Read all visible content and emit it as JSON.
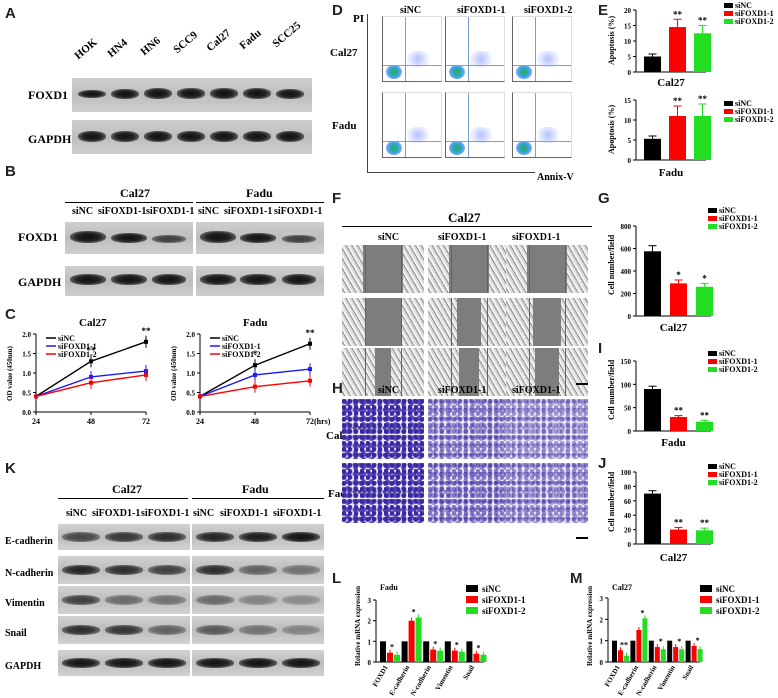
{
  "panels": {
    "A": "A",
    "B": "B",
    "C": "C",
    "D": "D",
    "E": "E",
    "F": "F",
    "G": "G",
    "H": "H",
    "I": "I",
    "J": "J",
    "K": "K",
    "L": "L",
    "M": "M"
  },
  "panelA": {
    "cell_lines": [
      "HOK",
      "HN4",
      "HN6",
      "SCC9",
      "Cal27",
      "Fadu",
      "SCC25"
    ],
    "rows": [
      "FOXD1",
      "GAPDH"
    ]
  },
  "panelB": {
    "groups": [
      "Cal27",
      "Fadu"
    ],
    "lanes": [
      "siNC",
      "siFOXD1-1",
      "siFOXD1-1"
    ],
    "rows": [
      "FOXD1",
      "GAPDH"
    ]
  },
  "panelD": {
    "columns": [
      "siNC",
      "siFOXD1-1",
      "siFOXD1-2"
    ],
    "rows": [
      "Cal27",
      "Fadu"
    ],
    "yaxis": "PI",
    "xaxis": "Annix-V"
  },
  "panelF": {
    "title": "Cal27",
    "columns": [
      "siNC",
      "siFOXD1-1",
      "siFOXD1-1"
    ]
  },
  "panelH": {
    "columns": [
      "siNC",
      "siFOXD1-1",
      "siFOXD1-1"
    ],
    "rows": [
      "Cal27",
      "Fadu"
    ]
  },
  "panelK": {
    "groups": [
      "Cal27",
      "Fadu"
    ],
    "lanes": [
      "siNC",
      "siFOXD1-1",
      "siFOXD1-1"
    ],
    "rows": [
      "E-cadherin",
      "N-cadherin",
      "Vimentin",
      "Snail",
      "GAPDH"
    ]
  },
  "colors": {
    "siNC": "#000000",
    "si1": "#ff0000",
    "si2": "#22dd22",
    "blue": "#1a1aff"
  },
  "chart_data": [
    {
      "id": "C1",
      "type": "line",
      "title": "Cal27",
      "xlabel": "",
      "ylabel": "OD value (450nm)",
      "x": [
        24,
        48,
        72
      ],
      "ylim": [
        0,
        2.0
      ],
      "yticks": [
        0,
        0.5,
        1.0,
        1.5,
        2.0
      ],
      "ytick_labels": [
        "0.0",
        "0.5",
        "1.0",
        "1.5",
        "2.0"
      ],
      "series": [
        {
          "name": "siNC",
          "color": "#000000",
          "values": [
            0.4,
            1.3,
            1.8
          ]
        },
        {
          "name": "siFOXD1-1",
          "color": "#1a1aff",
          "values": [
            0.4,
            0.9,
            1.05
          ]
        },
        {
          "name": "siFOXD1-2",
          "color": "#ff0000",
          "values": [
            0.4,
            0.75,
            0.95
          ]
        }
      ],
      "annotations": [
        "**",
        "**"
      ]
    },
    {
      "id": "C2",
      "type": "line",
      "title": "Fadu",
      "xlabel": "(hrs)",
      "ylabel": "OD value (450nm)",
      "x": [
        24,
        48,
        72
      ],
      "ylim": [
        0,
        2.0
      ],
      "yticks": [
        0,
        0.5,
        1.0,
        1.5,
        2.0
      ],
      "ytick_labels": [
        "0.0",
        "0.5",
        "1.0",
        "1.5",
        "2.0"
      ],
      "series": [
        {
          "name": "siNC",
          "color": "#000000",
          "values": [
            0.4,
            1.2,
            1.75
          ]
        },
        {
          "name": "siFOXD1-1",
          "color": "#1a1aff",
          "values": [
            0.4,
            0.95,
            1.1
          ]
        },
        {
          "name": "siFOXD1-2",
          "color": "#ff0000",
          "values": [
            0.4,
            0.65,
            0.8
          ]
        }
      ],
      "annotations": [
        "*",
        "**"
      ]
    },
    {
      "id": "E1",
      "type": "bar",
      "title": "Cal27",
      "ylabel": "Apoptosis (%)",
      "ylim": [
        0,
        20
      ],
      "yticks": [
        0,
        5,
        10,
        15,
        20
      ],
      "categories": [
        "siNC",
        "siFOXD1-1",
        "siFOXD1-2"
      ],
      "values": [
        5,
        14.5,
        12.5
      ],
      "errors": [
        0.8,
        2.5,
        2.5
      ],
      "colors": [
        "#000000",
        "#ff0000",
        "#22dd22"
      ],
      "annotations": [
        "",
        "**",
        "**"
      ]
    },
    {
      "id": "E2",
      "type": "bar",
      "title": "Fadu",
      "ylabel": "Apoptosis (%)",
      "ylim": [
        0,
        15
      ],
      "yticks": [
        0,
        5,
        10,
        15
      ],
      "categories": [
        "siNC",
        "siFOXD1-1",
        "siFOXD1-2"
      ],
      "values": [
        5.3,
        11,
        11
      ],
      "errors": [
        0.7,
        2.5,
        3.0
      ],
      "colors": [
        "#000000",
        "#ff0000",
        "#22dd22"
      ],
      "annotations": [
        "",
        "**",
        "**"
      ]
    },
    {
      "id": "G",
      "type": "bar",
      "title": "Cal27",
      "ylabel": "Cell number/field",
      "ylim": [
        0,
        800
      ],
      "yticks": [
        0,
        200,
        400,
        600,
        800
      ],
      "categories": [
        "siNC",
        "siFOXD1-1",
        "siFOXD1-2"
      ],
      "values": [
        575,
        290,
        260
      ],
      "errors": [
        50,
        30,
        30
      ],
      "colors": [
        "#000000",
        "#ff0000",
        "#22dd22"
      ],
      "annotations": [
        "",
        "*",
        "*"
      ]
    },
    {
      "id": "I",
      "type": "bar",
      "title": "Fadu",
      "ylabel": "Cell number/field",
      "ylim": [
        0,
        150
      ],
      "yticks": [
        0,
        50,
        100,
        150
      ],
      "categories": [
        "siNC",
        "siFOXD1-1",
        "siFOXD1-2"
      ],
      "values": [
        90,
        30,
        20
      ],
      "errors": [
        6,
        3,
        3
      ],
      "colors": [
        "#000000",
        "#ff0000",
        "#22dd22"
      ],
      "annotations": [
        "",
        "**",
        "**"
      ]
    },
    {
      "id": "J",
      "type": "bar",
      "title": "Cal27",
      "ylabel": "Cell number/field",
      "ylim": [
        0,
        100
      ],
      "yticks": [
        0,
        20,
        40,
        60,
        80,
        100
      ],
      "categories": [
        "siNC",
        "siFOXD1-1",
        "siFOXD1-2"
      ],
      "values": [
        70,
        20,
        19
      ],
      "errors": [
        4,
        3,
        3
      ],
      "colors": [
        "#000000",
        "#ff0000",
        "#22dd22"
      ],
      "annotations": [
        "",
        "**",
        "**"
      ]
    },
    {
      "id": "L",
      "type": "bar",
      "title": "Fadu",
      "ylabel": "Relative  mRNA expression",
      "ylim": [
        0,
        3
      ],
      "yticks": [
        0,
        1,
        2,
        3
      ],
      "categories": [
        "FOXD1",
        "E-cadherin",
        "N-cadherin",
        "Vimentin",
        "Snail"
      ],
      "series": [
        {
          "name": "siNC",
          "color": "#000000",
          "values": [
            1,
            1,
            1,
            1,
            1
          ]
        },
        {
          "name": "siFOXD1-1",
          "color": "#ff0000",
          "values": [
            0.45,
            2.0,
            0.6,
            0.55,
            0.4
          ]
        },
        {
          "name": "siFOXD1-2",
          "color": "#22dd22",
          "values": [
            0.35,
            2.15,
            0.55,
            0.5,
            0.35
          ]
        }
      ],
      "annotations": [
        "*",
        "*",
        "*",
        "*",
        "*"
      ]
    },
    {
      "id": "M",
      "type": "bar",
      "title": "Cal27",
      "ylabel": "Relative  mRNA expression",
      "ylim": [
        0,
        3
      ],
      "yticks": [
        0,
        1,
        2,
        3
      ],
      "categories": [
        "FOXD1",
        "E-cadherin",
        "N-cadherin",
        "Vimentin",
        "Snail"
      ],
      "series": [
        {
          "name": "siNC",
          "color": "#000000",
          "values": [
            1,
            1,
            1,
            1,
            1
          ]
        },
        {
          "name": "siFOXD1-1",
          "color": "#ff0000",
          "values": [
            0.55,
            1.5,
            0.7,
            0.7,
            0.75
          ]
        },
        {
          "name": "siFOXD1-2",
          "color": "#22dd22",
          "values": [
            0.3,
            2.05,
            0.6,
            0.6,
            0.6
          ]
        }
      ],
      "annotations": [
        "**",
        "*",
        "*",
        "*",
        "*"
      ]
    }
  ]
}
